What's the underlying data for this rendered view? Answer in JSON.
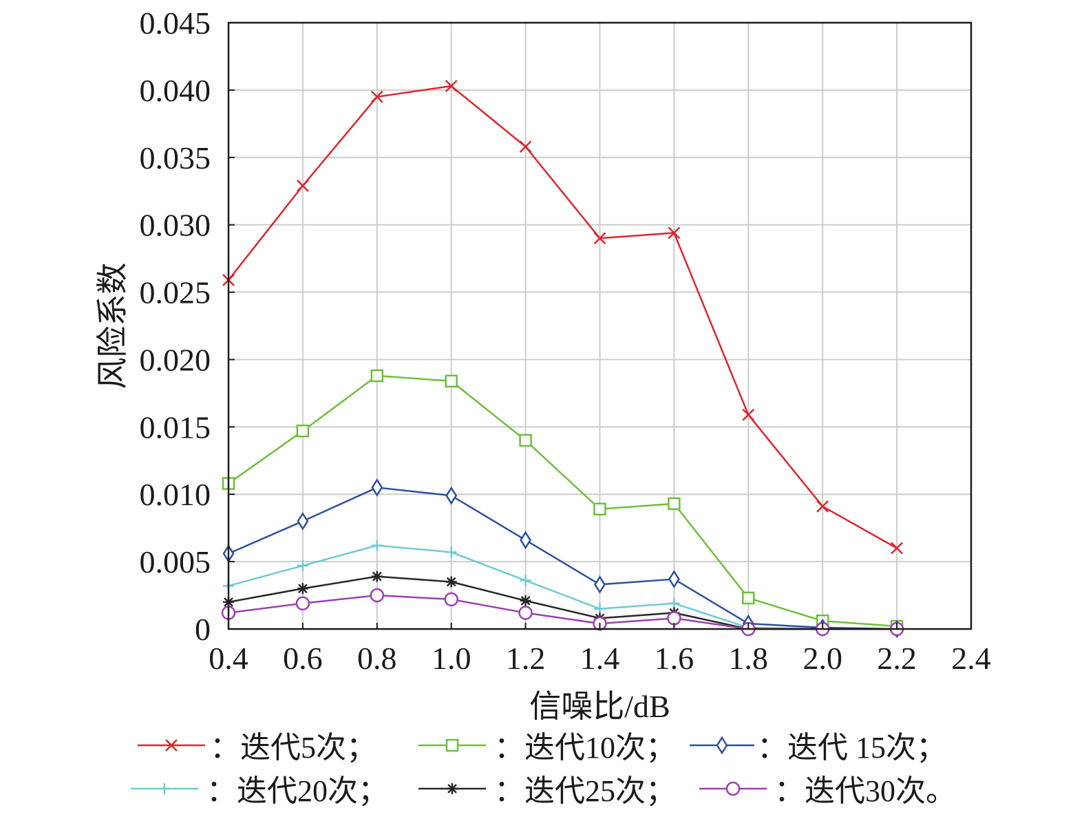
{
  "chart_data": {
    "type": "line",
    "title": "",
    "xlabel": "信噪比/dB",
    "ylabel": "风险系数",
    "x": [
      0.4,
      0.6,
      0.8,
      1.0,
      1.2,
      1.4,
      1.6,
      1.8,
      2.0,
      2.2
    ],
    "xlim": [
      0.4,
      2.4
    ],
    "ylim": [
      0,
      0.045
    ],
    "x_ticks": [
      "0.4",
      "0.6",
      "0.8",
      "1.0",
      "1.2",
      "1.4",
      "1.6",
      "1.8",
      "2.0",
      "2.2",
      "2.4"
    ],
    "y_ticks": [
      "0",
      "0.005",
      "0.010",
      "0.015",
      "0.020",
      "0.025",
      "0.030",
      "0.035",
      "0.040",
      "0.045"
    ],
    "grid": true,
    "legend_position": "bottom",
    "series": [
      {
        "name": "：迭代5次；",
        "color": "#e0242b",
        "marker": "x",
        "values": [
          0.0259,
          0.0329,
          0.0395,
          0.0403,
          0.0358,
          0.029,
          0.0294,
          0.0159,
          0.0091,
          0.006
        ]
      },
      {
        "name": "：迭代10次；",
        "color": "#6dbf3b",
        "marker": "square",
        "values": [
          0.0108,
          0.0147,
          0.0188,
          0.0184,
          0.014,
          0.0089,
          0.0093,
          0.0023,
          0.0006,
          0.0002
        ]
      },
      {
        "name": "：迭代 15次；",
        "color": "#2c4f9e",
        "marker": "diamond",
        "values": [
          0.0056,
          0.008,
          0.0105,
          0.0099,
          0.0066,
          0.0033,
          0.0037,
          0.0004,
          0.0001,
          0.0
        ]
      },
      {
        "name": "：迭代20次；",
        "color": "#6ecbd0",
        "marker": "plus",
        "values": [
          0.0032,
          0.0047,
          0.0062,
          0.0057,
          0.0036,
          0.0015,
          0.0019,
          0.0001,
          0.0,
          0.0
        ]
      },
      {
        "name": "：迭代25次；",
        "color": "#262626",
        "marker": "star",
        "values": [
          0.002,
          0.003,
          0.0039,
          0.0035,
          0.0021,
          0.0008,
          0.0012,
          0.0,
          0.0,
          0.0
        ]
      },
      {
        "name": "：迭代30次。",
        "color": "#9b3fb0",
        "marker": "circle",
        "values": [
          0.0012,
          0.0019,
          0.0025,
          0.0022,
          0.0012,
          0.0004,
          0.0008,
          0.0,
          0.0,
          0.0
        ]
      }
    ]
  }
}
